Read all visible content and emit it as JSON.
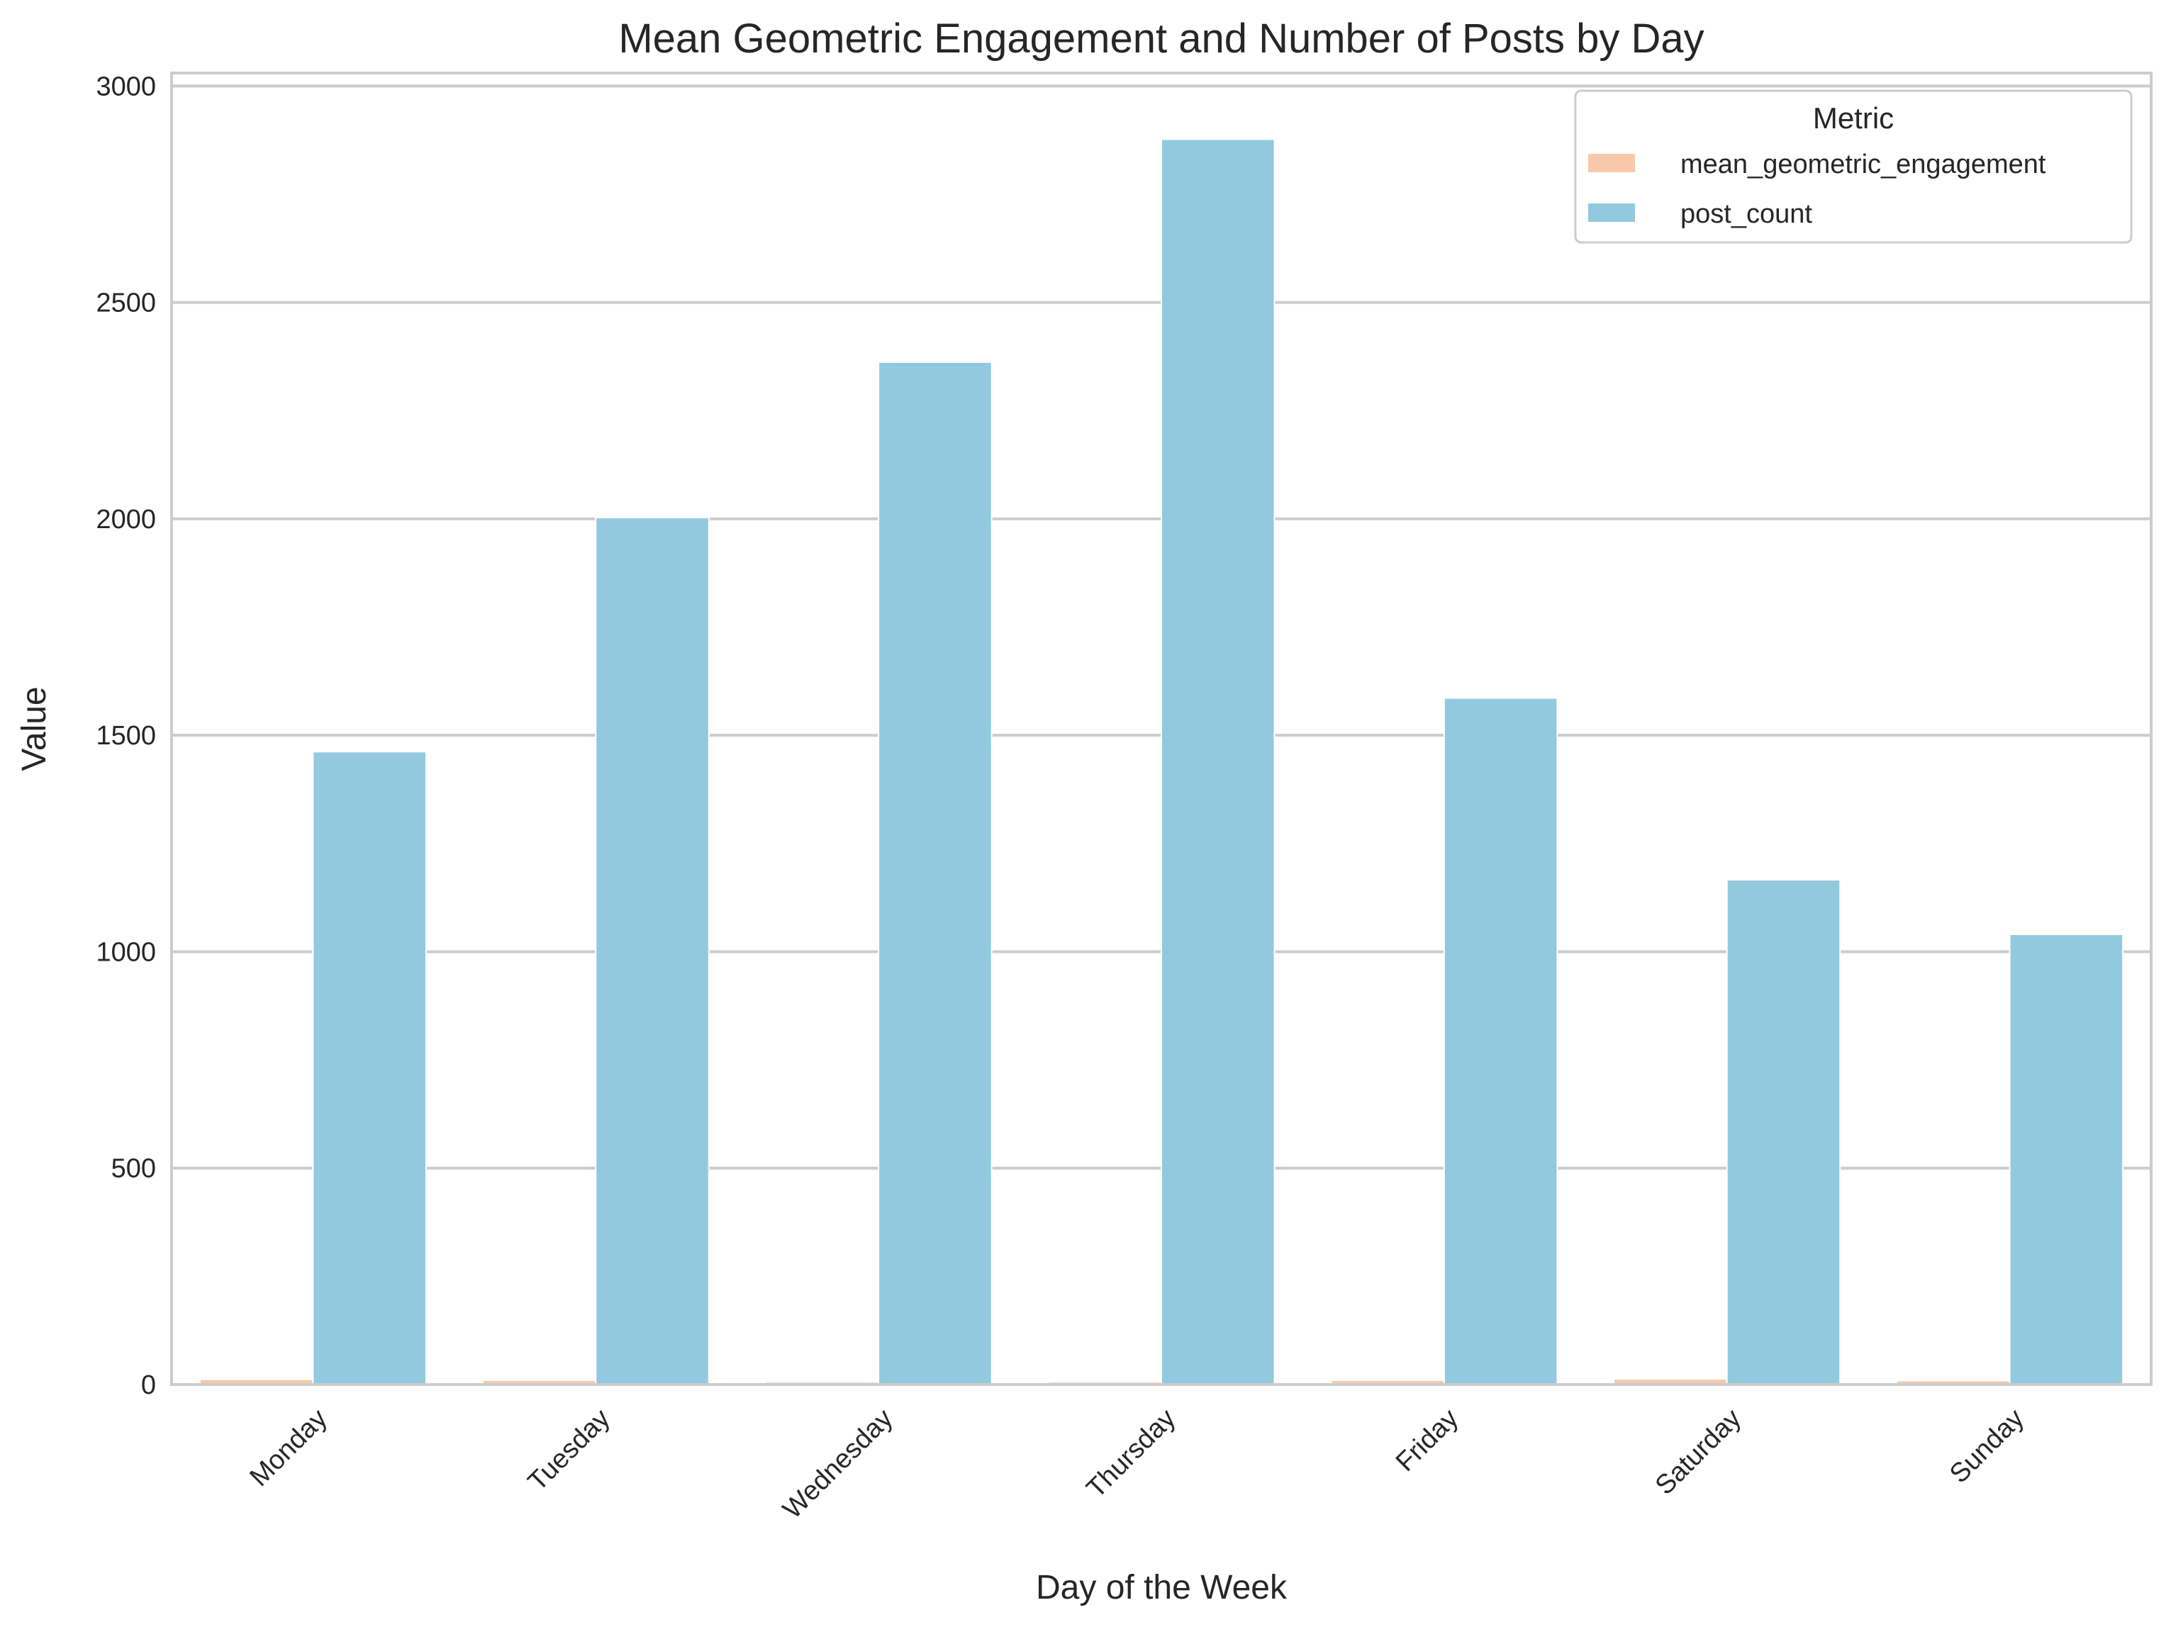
{
  "chart_data": {
    "type": "bar",
    "title": "Mean Geometric Engagement and Number of Posts by Day",
    "xlabel": "Day of the Week",
    "ylabel": "Value",
    "categories": [
      "Monday",
      "Tuesday",
      "Wednesday",
      "Thursday",
      "Friday",
      "Saturday",
      "Sunday"
    ],
    "series": [
      {
        "name": "mean_geometric_engagement",
        "color": "#f7c9aa",
        "values": [
          12,
          10,
          6,
          6,
          10,
          13,
          9
        ]
      },
      {
        "name": "post_count",
        "color": "#92c9de",
        "values": [
          1462,
          2003,
          2362,
          2877,
          1586,
          1166,
          1040
        ]
      }
    ],
    "ylim": [
      0,
      3030
    ],
    "yticks": [
      0,
      500,
      1000,
      1500,
      2000,
      2500,
      3000
    ],
    "grid": true,
    "legend": {
      "title": "Metric",
      "placement": "top-right"
    }
  }
}
